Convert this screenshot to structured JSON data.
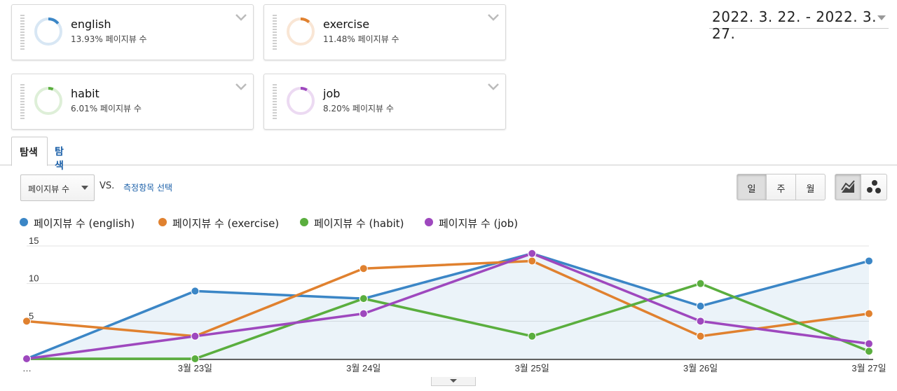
{
  "segments": [
    {
      "name": "english",
      "pct_label": "13.93% 페이지뷰 수",
      "share": 0.1393,
      "color": "#3b86c6"
    },
    {
      "name": "exercise",
      "pct_label": "11.48% 페이지뷰 수",
      "share": 0.1148,
      "color": "#e0812f"
    },
    {
      "name": "habit",
      "pct_label": "6.01% 페이지뷰 수",
      "share": 0.0601,
      "color": "#5aae3e"
    },
    {
      "name": "job",
      "pct_label": "8.20% 페이지뷰 수",
      "share": 0.082,
      "color": "#9e48be"
    }
  ],
  "date_range": "2022. 3. 22. - 2022. 3. 27.",
  "tabs": {
    "explore": "탐색",
    "summary": "탐색 요약"
  },
  "controls": {
    "metric": "페이지뷰 수",
    "vs": "VS.",
    "select_metric": "측정항목 선택",
    "periods": [
      "일",
      "주",
      "월"
    ],
    "selected_period": "일",
    "chart_modes": [
      "line-chart-icon",
      "motion-chart-icon"
    ]
  },
  "chart_data": {
    "type": "line",
    "x": [
      "…",
      "3월 23일",
      "3월 24일",
      "3월 25일",
      "3월 26일",
      "3월 27일"
    ],
    "ylim": [
      0,
      15
    ],
    "yticks": [
      5,
      10,
      15
    ],
    "series": [
      {
        "name": "페이지뷰 수 (english)",
        "color": "#3b86c6",
        "values": [
          0,
          9,
          8,
          14,
          7,
          13
        ],
        "filled": true
      },
      {
        "name": "페이지뷰 수 (exercise)",
        "color": "#e0812f",
        "values": [
          5,
          3,
          12,
          13,
          3,
          6
        ]
      },
      {
        "name": "페이지뷰 수 (habit)",
        "color": "#5aae3e",
        "values": [
          0,
          0,
          8,
          3,
          10,
          1
        ]
      },
      {
        "name": "페이지뷰 수 (job)",
        "color": "#9e48be",
        "values": [
          0,
          3,
          6,
          14,
          5,
          2
        ]
      }
    ]
  }
}
